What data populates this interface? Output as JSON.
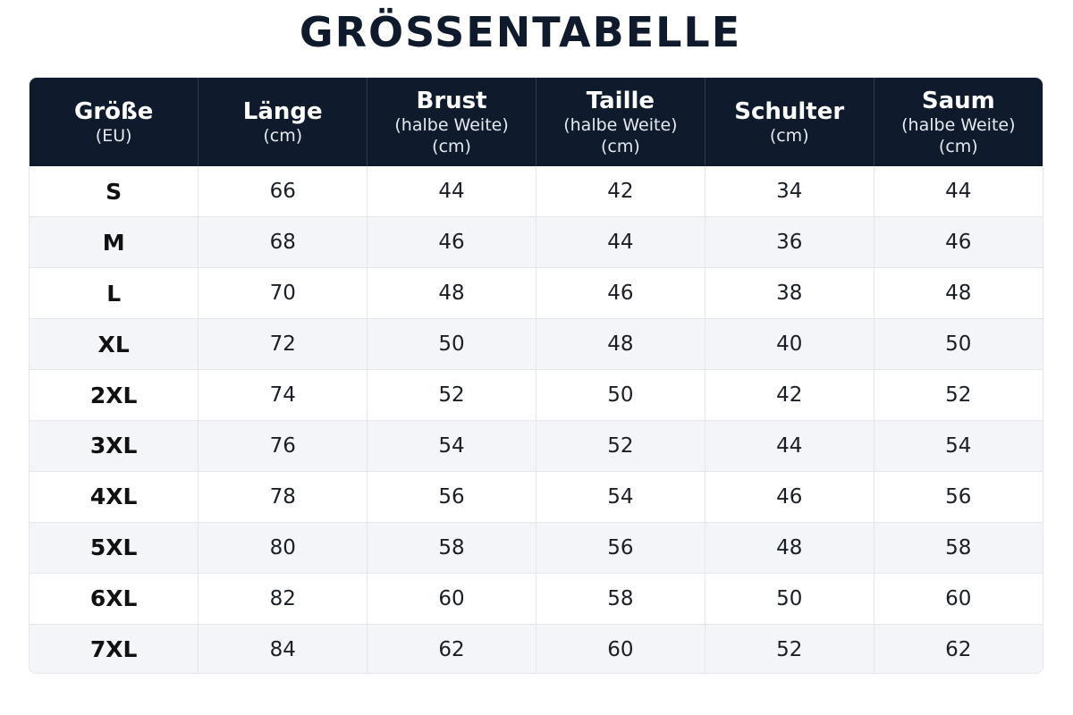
{
  "title": "GRÖSSENTABELLE",
  "table": {
    "columns": [
      {
        "label": "Größe",
        "sub": [
          "(EU)"
        ]
      },
      {
        "label": "Länge",
        "sub": [
          "(cm)"
        ]
      },
      {
        "label": "Brust",
        "sub": [
          "(halbe Weite)",
          "(cm)"
        ]
      },
      {
        "label": "Taille",
        "sub": [
          "(halbe Weite)",
          "(cm)"
        ]
      },
      {
        "label": "Schulter",
        "sub": [
          "(cm)"
        ]
      },
      {
        "label": "Saum",
        "sub": [
          "(halbe Weite)",
          "(cm)"
        ]
      }
    ],
    "rows": [
      [
        "S",
        "66",
        "44",
        "42",
        "34",
        "44"
      ],
      [
        "M",
        "68",
        "46",
        "44",
        "36",
        "46"
      ],
      [
        "L",
        "70",
        "48",
        "46",
        "38",
        "48"
      ],
      [
        "XL",
        "72",
        "50",
        "48",
        "40",
        "50"
      ],
      [
        "2XL",
        "74",
        "52",
        "50",
        "42",
        "52"
      ],
      [
        "3XL",
        "76",
        "54",
        "52",
        "44",
        "54"
      ],
      [
        "4XL",
        "78",
        "56",
        "54",
        "46",
        "56"
      ],
      [
        "5XL",
        "80",
        "58",
        "56",
        "48",
        "58"
      ],
      [
        "6XL",
        "82",
        "60",
        "58",
        "50",
        "60"
      ],
      [
        "7XL",
        "84",
        "62",
        "60",
        "52",
        "62"
      ]
    ]
  },
  "colors": {
    "header_bg": "#0f1b2d",
    "header_text": "#ffffff",
    "row_alt": "#f4f5f8",
    "border": "#e3e6ea"
  }
}
